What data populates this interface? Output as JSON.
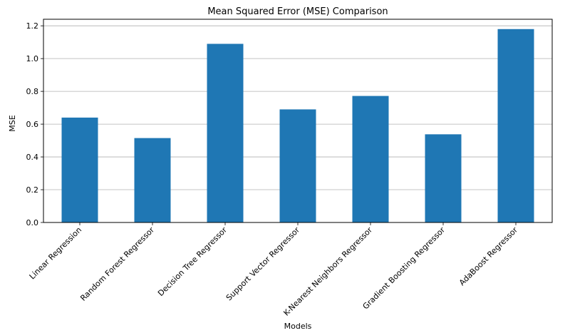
{
  "chart_data": {
    "type": "bar",
    "title": "Mean Squared Error (MSE) Comparison",
    "xlabel": "Models",
    "ylabel": "MSE",
    "categories": [
      "Linear Regression",
      "Random Forest Regressor",
      "Decision Tree Regressor",
      "Support Vector Regressor",
      "K-Nearest Neighbors Regressor",
      "Gradient Boosting Regressor",
      "AdaBoost Regressor"
    ],
    "values": [
      0.64,
      0.515,
      1.09,
      0.69,
      0.772,
      0.538,
      1.18
    ],
    "ylim": [
      0,
      1.24
    ],
    "yticks": [
      0.0,
      0.2,
      0.4,
      0.6,
      0.8,
      1.0,
      1.2
    ],
    "grid": "y",
    "bar_color": "#1f77b4"
  }
}
